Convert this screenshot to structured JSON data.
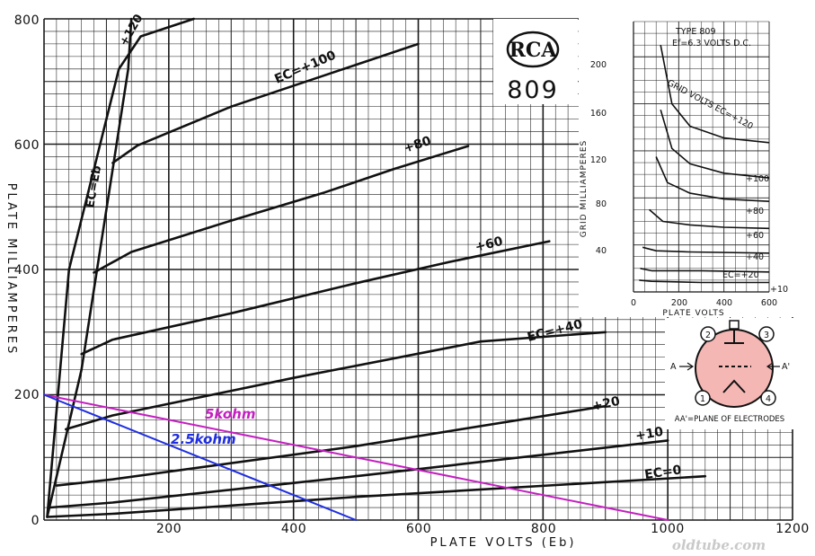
{
  "chart_data": {
    "type": "line",
    "xlabel": "PLATE VOLTS (Eb)",
    "ylabel": "PLATE MILLIAMPERES",
    "xlim": [
      0,
      1200
    ],
    "ylim": [
      0,
      800
    ],
    "x_ticks": [
      "200",
      "400",
      "600",
      "800",
      "1000",
      "1200"
    ],
    "y_ticks": [
      "0",
      "200",
      "400",
      "600",
      "800"
    ],
    "series": [
      {
        "name": "+120",
        "points": [
          [
            5,
            5
          ],
          [
            40,
            400
          ],
          [
            120,
            720
          ],
          [
            155,
            772
          ],
          [
            240,
            800
          ]
        ]
      },
      {
        "name": "Ec=+100",
        "points": [
          [
            110,
            570
          ],
          [
            150,
            598
          ],
          [
            300,
            660
          ],
          [
            450,
            710
          ],
          [
            600,
            760
          ]
        ]
      },
      {
        "name": "+80",
        "points": [
          [
            80,
            395
          ],
          [
            140,
            428
          ],
          [
            300,
            478
          ],
          [
            450,
            523
          ],
          [
            560,
            560
          ],
          [
            680,
            597
          ]
        ]
      },
      {
        "name": "+60",
        "points": [
          [
            60,
            265
          ],
          [
            110,
            288
          ],
          [
            300,
            330
          ],
          [
            500,
            378
          ],
          [
            650,
            412
          ],
          [
            810,
            445
          ]
        ]
      },
      {
        "name": "Ec=+40",
        "points": [
          [
            35,
            145
          ],
          [
            110,
            167
          ],
          [
            400,
            227
          ],
          [
            700,
            285
          ],
          [
            900,
            300
          ]
        ]
      },
      {
        "name": "+20",
        "points": [
          [
            20,
            55
          ],
          [
            110,
            65
          ],
          [
            500,
            118
          ],
          [
            900,
            182
          ]
        ]
      },
      {
        "name": "+10",
        "points": [
          [
            10,
            20
          ],
          [
            110,
            28
          ],
          [
            500,
            70
          ],
          [
            1000,
            127
          ]
        ]
      },
      {
        "name": "Ec=0",
        "points": [
          [
            5,
            5
          ],
          [
            110,
            10
          ],
          [
            500,
            37
          ],
          [
            1060,
            70
          ]
        ]
      },
      {
        "name": "Ec=Eb",
        "points": [
          [
            5,
            5
          ],
          [
            60,
            240
          ],
          [
            85,
            400
          ],
          [
            110,
            560
          ],
          [
            135,
            720
          ],
          [
            140,
            800
          ]
        ]
      },
      {
        "name": "5kohm",
        "color": "#c41fc1",
        "points": [
          [
            0,
            200
          ],
          [
            1000,
            0
          ]
        ]
      },
      {
        "name": "2.5kohm",
        "color": "#1f2ee0",
        "points": [
          [
            0,
            200
          ],
          [
            500,
            0
          ]
        ]
      }
    ],
    "curve_labels": {
      "c120": "+120",
      "c100": "EC=+100",
      "c80": "+80",
      "c60": "+60",
      "c40": "EC=+40",
      "c20": "+20",
      "c10": "+10",
      "c0": "EC=0",
      "ceb": "EC=Eb",
      "load5": "5kohm",
      "load25": "2.5kohm"
    },
    "inset": {
      "type": "line",
      "title": "TYPE 809",
      "subtitle": "Ef=6.3 VOLTS D.C.",
      "xlabel": "PLATE VOLTS",
      "ylabel": "GRID MILLIAMPERES",
      "xlim": [
        0,
        600
      ],
      "ylim": [
        0,
        230
      ],
      "x_ticks": [
        "0",
        "200",
        "400",
        "600"
      ],
      "y_ticks": [
        "40",
        "80",
        "120",
        "160",
        "200"
      ],
      "series_title": "GRID VOLTS EC=+120",
      "series": [
        {
          "name": "+120",
          "points": [
            [
              120,
              210
            ],
            [
              170,
              160
            ],
            [
              250,
              141
            ],
            [
              400,
              131
            ],
            [
              600,
              127
            ]
          ]
        },
        {
          "name": "+100",
          "points": [
            [
              120,
              155
            ],
            [
              170,
              122
            ],
            [
              250,
              109
            ],
            [
              400,
              101
            ],
            [
              600,
              97
            ]
          ]
        },
        {
          "name": "+80",
          "points": [
            [
              100,
              115
            ],
            [
              150,
              93
            ],
            [
              250,
              84
            ],
            [
              400,
              79
            ],
            [
              600,
              77
            ]
          ]
        },
        {
          "name": "+60",
          "points": [
            [
              70,
              70
            ],
            [
              130,
              60
            ],
            [
              250,
              57
            ],
            [
              400,
              55
            ],
            [
              600,
              54
            ]
          ]
        },
        {
          "name": "+40",
          "points": [
            [
              40,
              38
            ],
            [
              100,
              35
            ],
            [
              250,
              34
            ],
            [
              600,
              33
            ]
          ]
        },
        {
          "name": "EC=+20",
          "points": [
            [
              30,
              20
            ],
            [
              80,
              18
            ],
            [
              300,
              18
            ],
            [
              600,
              17
            ]
          ]
        },
        {
          "name": "+10",
          "points": [
            [
              25,
              10
            ],
            [
              80,
              9
            ],
            [
              300,
              8
            ],
            [
              600,
              8
            ]
          ]
        }
      ]
    },
    "logo": "RCA",
    "tube_type": "809",
    "pin_labels": [
      "2",
      "3",
      "1",
      "4"
    ],
    "electrode_labels": {
      "a": "A",
      "a_prime": "A'"
    },
    "pin_caption": "AA'=PLANE OF ELECTRODES",
    "watermark": "oldtube.com",
    "colors": {
      "grid": "#1a1a1a",
      "curve": "#111111",
      "load5": "#c41fc1",
      "load25": "#1f2ee0",
      "tube_fill": "#f4b7b4"
    }
  }
}
